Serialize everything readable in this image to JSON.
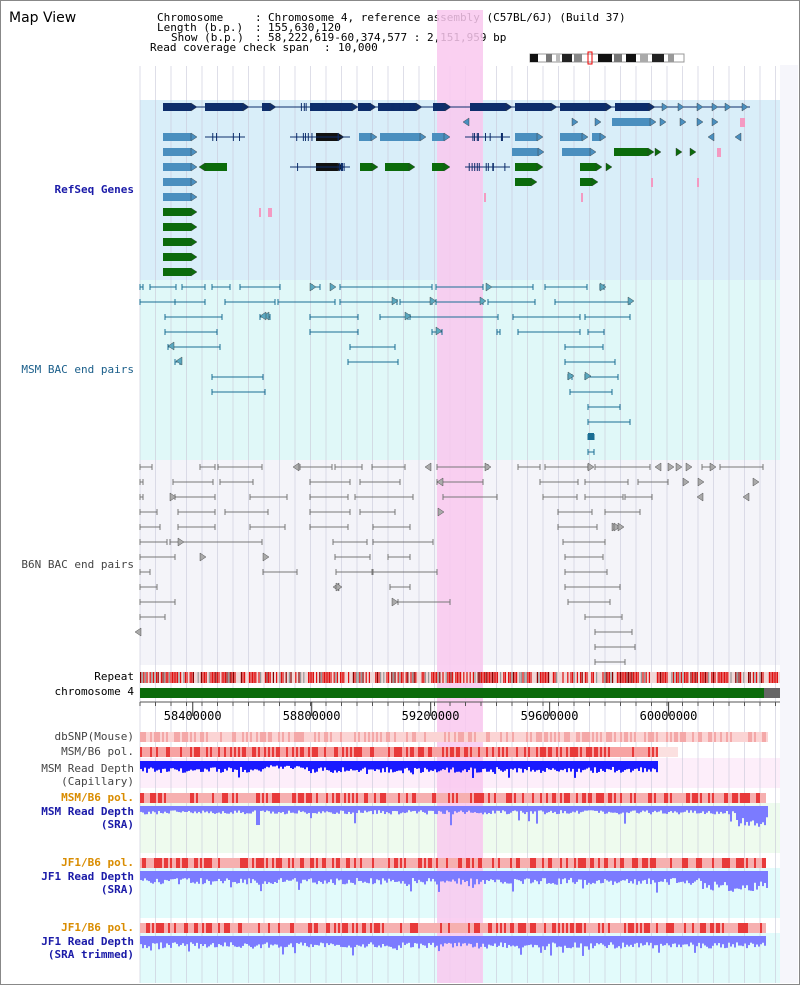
{
  "title": "Map View",
  "info": {
    "chromosome_key": "Chromosome",
    "chromosome_val": "Chromosome 4, reference assembly (C57BL/6J) (Build 37)",
    "length_key": "Length (b.p.)",
    "length_val": "155,630,120",
    "show_key": "Show (b.p.)",
    "show_val": "58,222,619-60,374,577 : 2,151,959 bp",
    "span_key": "Read coverage check span",
    "span_val": "10,000"
  },
  "tracks": {
    "refseq": "RefSeq Genes",
    "msm_bac": "MSM BAC end pairs",
    "b6n_bac": "B6N BAC end pairs",
    "repeat": "Repeat",
    "chromosome": "chromosome 4",
    "dbsnp": "dbSNP(Mouse)",
    "msm_b6_pol": "MSM/B6 pol.",
    "msm_depth_cap_1": "MSM Read Depth",
    "msm_depth_cap_2": "(Capillary)",
    "msm_b6_pol_sra": "MSM/B6 pol.",
    "msm_depth_sra_1": "MSM Read Depth",
    "msm_depth_sra_2": "(SRA)",
    "jf1_pol_1": "JF1/B6 pol.",
    "jf1_depth_1a": "JF1 Read Depth",
    "jf1_depth_1b": "(SRA)",
    "jf1_pol_2": "JF1/B6 pol.",
    "jf1_depth_2a": "JF1 Read Depth",
    "jf1_depth_2b": "(SRA trimmed)"
  },
  "axis": {
    "ticks": [
      "58400000",
      "58800000",
      "59200000",
      "59600000",
      "60000000"
    ],
    "tick_values": [
      58400000,
      58800000,
      59200000,
      59600000,
      60000000
    ],
    "range": [
      58222619,
      60374577
    ]
  },
  "highlight_region": [
    59200000,
    59350000
  ],
  "colors": {
    "refseq_bg": "#d9eef9",
    "msm_bg": "#e0f8f8",
    "b6n_bg": "#f4f4f9",
    "gene_navy": "#0d2d6b",
    "gene_steel": "#4a8fbf",
    "gene_green": "#0b6b0b",
    "chromosome": "#0b6b0b",
    "highlight": "#f9c8ef",
    "depth_blue": "#1a1aff",
    "depth_light": "#7b7bff",
    "pol_red": "#e83a3a"
  }
}
